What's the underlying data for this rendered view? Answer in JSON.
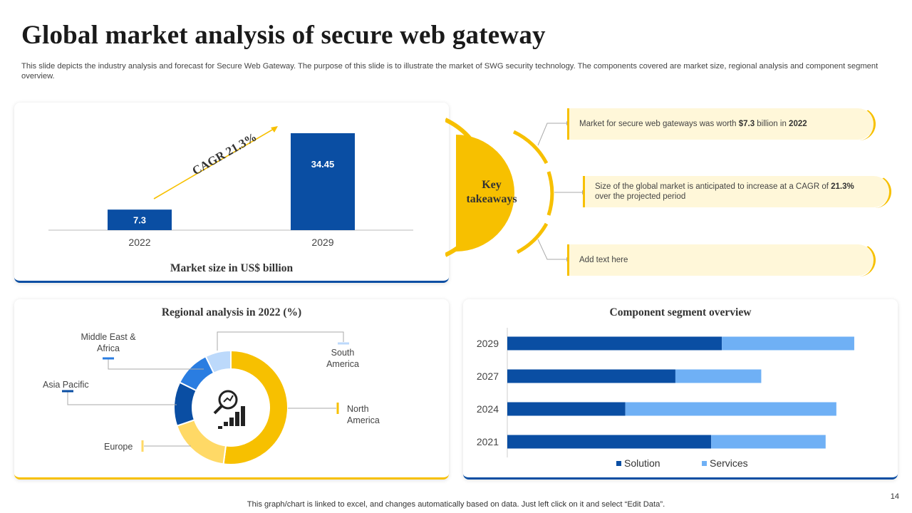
{
  "title": "Global market analysis of secure web gateway",
  "subtitle": "This slide depicts the industry analysis and forecast for Secure Web Gateway. The purpose of this slide is to illustrate the market of SWG security technology. The components covered are market size, regional analysis and component segment overview.",
  "colors": {
    "dark_blue": "#0a4ea3",
    "mid_blue": "#2a7de1",
    "light_blue": "#6fb0f5",
    "pale_blue": "#bcd9fb",
    "yellow": "#f7c000",
    "light_yellow": "#ffd966",
    "cream": "#fff7d9"
  },
  "market_size": {
    "title": "Market size in US$ billion",
    "cagr_label": "CAGR 21.3%",
    "chart_data": {
      "type": "bar",
      "categories": [
        "2022",
        "2029"
      ],
      "values": [
        7.3,
        34.45
      ],
      "value_labels": [
        "7.3",
        "34.45"
      ],
      "title": "Market size in US$ billion",
      "ylim": [
        0,
        40
      ]
    }
  },
  "key_takeaways": {
    "title": "Key takeaways",
    "items": [
      {
        "pre": "Market for secure web gateways was worth ",
        "b1": "$7.3",
        "mid": " billion in ",
        "b2": "2022",
        "post": ""
      },
      {
        "pre": "Size of the global market is anticipated to increase at a CAGR of ",
        "b1": "21.3%",
        "mid": "",
        "b2": "",
        "post": " over the projected period"
      },
      {
        "pre": "Add text here",
        "b1": "",
        "mid": "",
        "b2": "",
        "post": ""
      }
    ]
  },
  "regional": {
    "title": "Regional analysis in 2022 (%)",
    "labels": {
      "mea": "Middle East & Africa",
      "sa": "South America",
      "ap": "Asia Pacific",
      "na": "North America",
      "eu": "Europe"
    },
    "chart_data": {
      "type": "pie",
      "title": "Regional analysis in 2022 (%)",
      "categories": [
        "North America",
        "Europe",
        "Asia Pacific",
        "Middle East & Africa",
        "South America"
      ],
      "values": [
        50,
        17,
        12,
        10,
        7
      ]
    }
  },
  "component": {
    "title": "Component segment overview",
    "chart_data": {
      "type": "bar",
      "orientation": "horizontal",
      "stacked": true,
      "categories": [
        "2029",
        "2027",
        "2024",
        "2021"
      ],
      "series": [
        {
          "name": "Solution",
          "values": [
            60,
            47,
            33,
            57
          ]
        },
        {
          "name": "Services",
          "values": [
            37,
            24,
            59,
            32
          ]
        }
      ],
      "xlim": [
        0,
        100
      ]
    }
  },
  "footer": "This graph/chart is linked to excel,  and changes automatically based on data. Just left click on it and select “Edit Data”.",
  "page_number": "14"
}
